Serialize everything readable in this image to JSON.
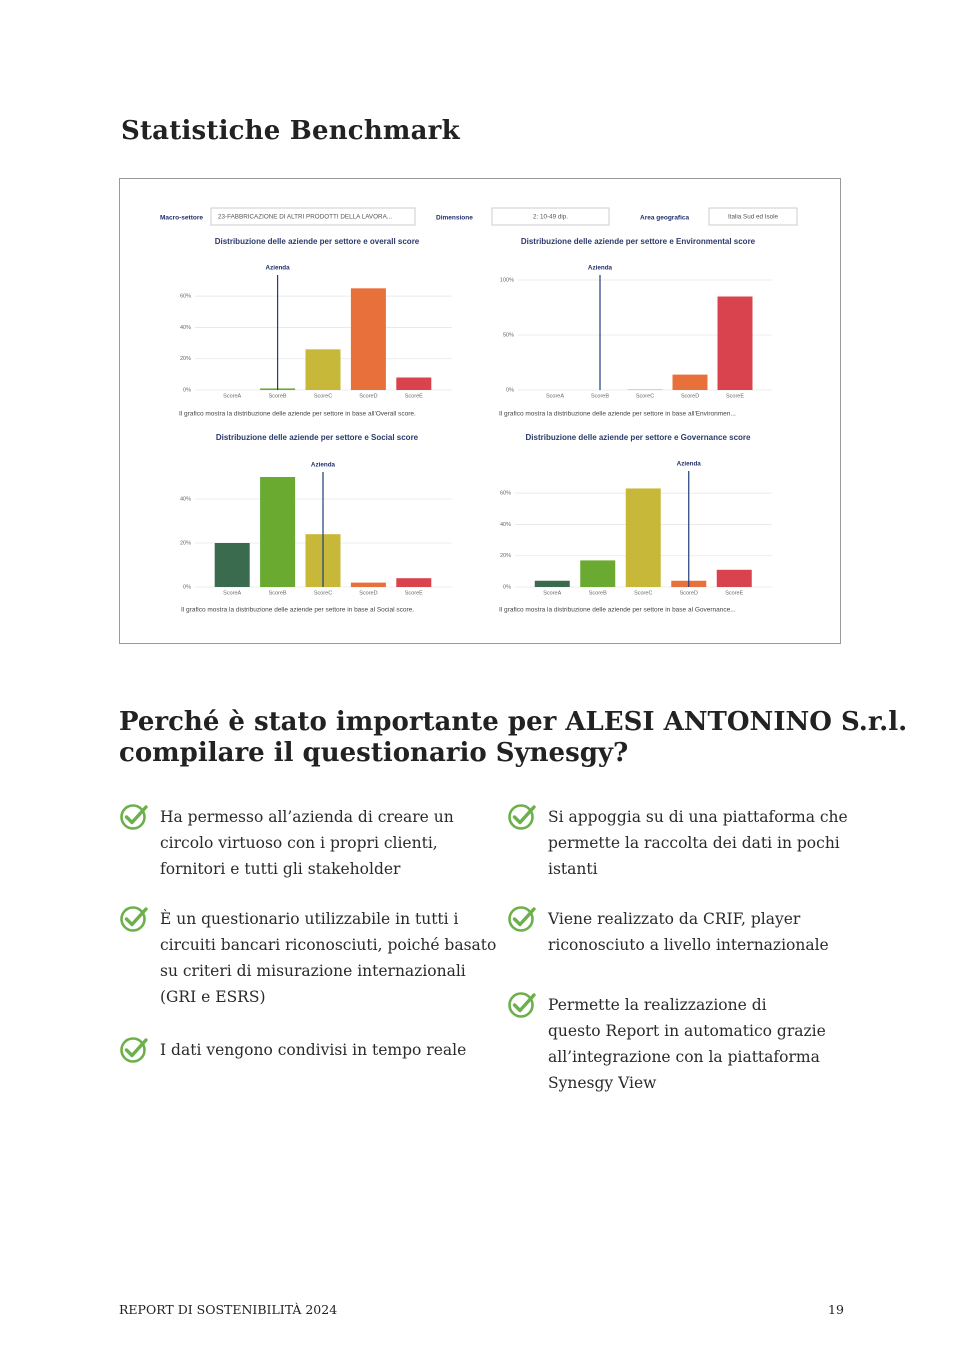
{
  "header": {
    "title": "Statistiche Benchmark"
  },
  "filters": [
    {
      "label": "Macro-settore",
      "value": "23-FABBRICAZIONE DI ALTRI PRODOTTI DELLA LAVORA..."
    },
    {
      "label": "Dimensione",
      "value": "2: 10-49 dip."
    },
    {
      "label": "Area geografica",
      "value": "Italia Sud ed Isole"
    }
  ],
  "chart_data": [
    {
      "type": "bar",
      "title": "Distribuzione delle aziende per settore e overall score",
      "categories": [
        "ScoreA",
        "ScoreB",
        "ScoreC",
        "ScoreD",
        "ScoreE"
      ],
      "values": [
        0,
        1,
        26,
        65,
        8
      ],
      "colors": [
        "#3a6b4e",
        "#6aaa30",
        "#c8b83a",
        "#e8703a",
        "#d9434e"
      ],
      "ylim": [
        0,
        70
      ],
      "yticks": [
        {
          "value": 0,
          "label": "0%"
        },
        {
          "value": 20,
          "label": "20%"
        },
        {
          "value": 40,
          "label": "40%"
        },
        {
          "value": 60,
          "label": "60%"
        }
      ],
      "grid": true,
      "marker": {
        "label": "Azienda",
        "at": "ScoreB"
      },
      "caption": "Il grafico mostra la distribuzione delle aziende per settore in base all'Overall score."
    },
    {
      "type": "bar",
      "title": "Distribuzione delle aziende per settore e Environmental score",
      "categories": [
        "ScoreA",
        "ScoreB",
        "ScoreC",
        "ScoreD",
        "ScoreE"
      ],
      "values": [
        0,
        0,
        0.5,
        14,
        85
      ],
      "colors": [
        "#3a6b4e",
        "#6aaa30",
        "#c8b83a",
        "#e8703a",
        "#d9434e"
      ],
      "ylim": [
        0,
        100
      ],
      "yticks": [
        {
          "value": 0,
          "label": "0%"
        },
        {
          "value": 50,
          "label": "50%"
        },
        {
          "value": 100,
          "label": "100%"
        }
      ],
      "grid": true,
      "marker": {
        "label": "Azienda",
        "at": "ScoreB"
      },
      "caption": "Il grafico mostra la distribuzione delle aziende per settore in base all'Environmen..."
    },
    {
      "type": "bar",
      "title": "Distribuzione delle aziende per settore e Social score",
      "categories": [
        "ScoreA",
        "ScoreB",
        "ScoreC",
        "ScoreD",
        "ScoreE"
      ],
      "values": [
        20,
        50,
        24,
        2,
        4
      ],
      "colors": [
        "#3a6b4e",
        "#6aaa30",
        "#c8b83a",
        "#e8703a",
        "#d9434e"
      ],
      "ylim": [
        0,
        55
      ],
      "yticks": [
        {
          "value": 0,
          "label": "0%"
        },
        {
          "value": 20,
          "label": "20%"
        },
        {
          "value": 40,
          "label": "40%"
        }
      ],
      "grid": true,
      "marker": {
        "label": "Azienda",
        "at": "ScoreC"
      },
      "caption": "Il grafico mostra la distribuzione delle aziende per settore in base al Social score."
    },
    {
      "type": "bar",
      "title": "Distribuzione delle aziende per settore e Governance score",
      "categories": [
        "ScoreA",
        "ScoreB",
        "ScoreC",
        "ScoreD",
        "ScoreE"
      ],
      "values": [
        4,
        17,
        63,
        4,
        11
      ],
      "colors": [
        "#3a6b4e",
        "#6aaa30",
        "#c8b83a",
        "#e8703a",
        "#d9434e"
      ],
      "ylim": [
        0,
        70
      ],
      "yticks": [
        {
          "value": 0,
          "label": "0%"
        },
        {
          "value": 20,
          "label": "20%"
        },
        {
          "value": 40,
          "label": "40%"
        },
        {
          "value": 60,
          "label": "60%"
        }
      ],
      "grid": true,
      "marker": {
        "label": "Azienda",
        "at": "ScoreD"
      },
      "caption": "Il grafico mostra la distribuzione delle aziende per settore in base al Governance..."
    }
  ],
  "section": {
    "title": [
      "Perché è stato importante per ALESI ANTONINO S.r.l.",
      "compilare il questionario Synesgy?"
    ],
    "left": [
      [
        "Ha permesso all’azienda di creare un",
        "circolo virtuoso con i propri clienti,",
        "fornitori e tutti gli stakeholder"
      ],
      [
        "È un questionario utilizzabile in tutti i",
        "circuiti bancari riconosciuti, poiché basato",
        "su criteri di misurazione internazionali",
        "(GRI e ESRS)"
      ],
      [
        "I dati vengono condivisi in tempo reale"
      ]
    ],
    "right": [
      [
        "Si appoggia su di una piattaforma che",
        "permette la raccolta dei dati in pochi",
        "istanti"
      ],
      [
        "Viene realizzato da CRIF, player",
        "riconosciuto a livello internazionale"
      ],
      [
        "Permette la realizzazione di",
        "questo Report in automatico grazie",
        "all’integrazione con la piattaforma",
        "Synesgy View"
      ]
    ]
  },
  "footer": {
    "left": "REPORT DI SOSTENIBILITÀ 2024",
    "page": "19"
  }
}
